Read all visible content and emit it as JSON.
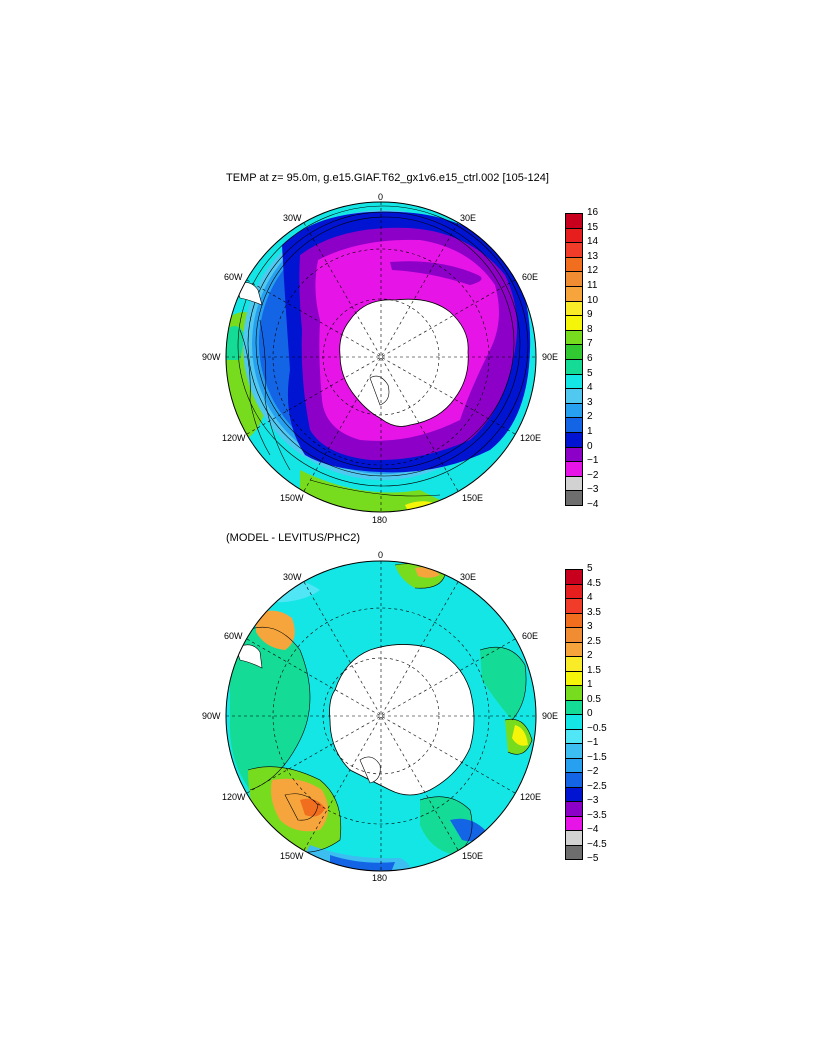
{
  "panel_top": {
    "title": "TEMP at z=  95.0m, g.e15.GIAF.T62_gx1v6.e15_ctrl.002 [105-124]",
    "lon_labels": [
      "0",
      "30E",
      "60E",
      "90E",
      "120E",
      "150E",
      "180",
      "150W",
      "120W",
      "90W",
      "60W",
      "30W"
    ],
    "colorbar": {
      "ticks": [
        "16",
        "15",
        "14",
        "13",
        "12",
        "11",
        "10",
        "9",
        "8",
        "7",
        "6",
        "5",
        "4",
        "3",
        "2",
        "1",
        "0",
        "−1",
        "−2",
        "−3",
        "−4"
      ],
      "colors": [
        "#c8001e",
        "#e61e1e",
        "#f03c28",
        "#f06e1e",
        "#f08c32",
        "#f5a53c",
        "#faeb28",
        "#f5f50a",
        "#78dc1e",
        "#32c832",
        "#14dc96",
        "#14e6e6",
        "#50c8f0",
        "#28a0f0",
        "#1464e6",
        "#0014d2",
        "#8c00c8",
        "#e614e6",
        "#d2d2d2",
        "#6e6e6e"
      ]
    }
  },
  "panel_bottom": {
    "title": "(MODEL - LEVITUS/PHC2)",
    "lon_labels": [
      "0",
      "30E",
      "60E",
      "90E",
      "120E",
      "150E",
      "180",
      "150W",
      "120W",
      "90W",
      "60W",
      "30W"
    ],
    "colorbar": {
      "ticks": [
        "5",
        "4.5",
        "4",
        "3.5",
        "3",
        "2.5",
        "2",
        "1.5",
        "1",
        "0.5",
        "0",
        "−0.5",
        "−1",
        "−1.5",
        "−2",
        "−2.5",
        "−3",
        "−3.5",
        "−4",
        "−4.5",
        "−5"
      ],
      "colors": [
        "#c8001e",
        "#e61e1e",
        "#f03c28",
        "#f06e1e",
        "#f08c32",
        "#f5a53c",
        "#faeb28",
        "#f5f50a",
        "#78dc1e",
        "#14dc96",
        "#14e6e6",
        "#50e6f5",
        "#3cbef0",
        "#28a0f0",
        "#1464e6",
        "#0014d2",
        "#8c00c8",
        "#e614e6",
        "#d2d2d2",
        "#6e6e6e"
      ]
    }
  }
}
